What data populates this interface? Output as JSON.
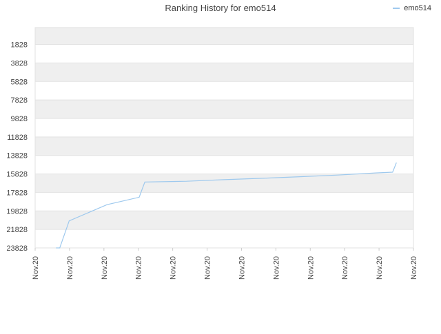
{
  "chart_data": {
    "type": "line",
    "title": "Ranking History for emo514",
    "xlabel": "",
    "ylabel": "",
    "legend": {
      "placement": "top-right"
    },
    "series": [
      {
        "name": "emo514",
        "color": "#9ec9ee",
        "points": [
          {
            "x": 0.055,
            "y": 23828
          },
          {
            "x": 0.065,
            "y": 23828
          },
          {
            "x": 0.09,
            "y": 20900
          },
          {
            "x": 0.19,
            "y": 19150
          },
          {
            "x": 0.275,
            "y": 18350
          },
          {
            "x": 0.28,
            "y": 17800
          },
          {
            "x": 0.29,
            "y": 16700
          },
          {
            "x": 0.4,
            "y": 16620
          },
          {
            "x": 0.5,
            "y": 16450
          },
          {
            "x": 0.6,
            "y": 16300
          },
          {
            "x": 0.7,
            "y": 16130
          },
          {
            "x": 0.8,
            "y": 15950
          },
          {
            "x": 0.9,
            "y": 15720
          },
          {
            "x": 0.945,
            "y": 15640
          },
          {
            "x": 0.955,
            "y": 14600
          }
        ]
      }
    ],
    "y_axis": {
      "reversed": true,
      "ylim": [
        0,
        23828
      ],
      "ticks": [
        "1828",
        "3828",
        "5828",
        "7828",
        "9828",
        "11828",
        "13828",
        "15828",
        "17828",
        "19828",
        "21828",
        "23828"
      ]
    },
    "x_axis": {
      "tick_labels": [
        "Nov.20",
        "Nov.20",
        "Nov.20",
        "Nov.20",
        "Nov.20",
        "Nov.20",
        "Nov.20",
        "Nov.20",
        "Nov.20",
        "Nov.20",
        "Nov.20",
        "Nov.20"
      ]
    },
    "grid": true,
    "band_colors": [
      "#efefef",
      "#ffffff"
    ]
  }
}
